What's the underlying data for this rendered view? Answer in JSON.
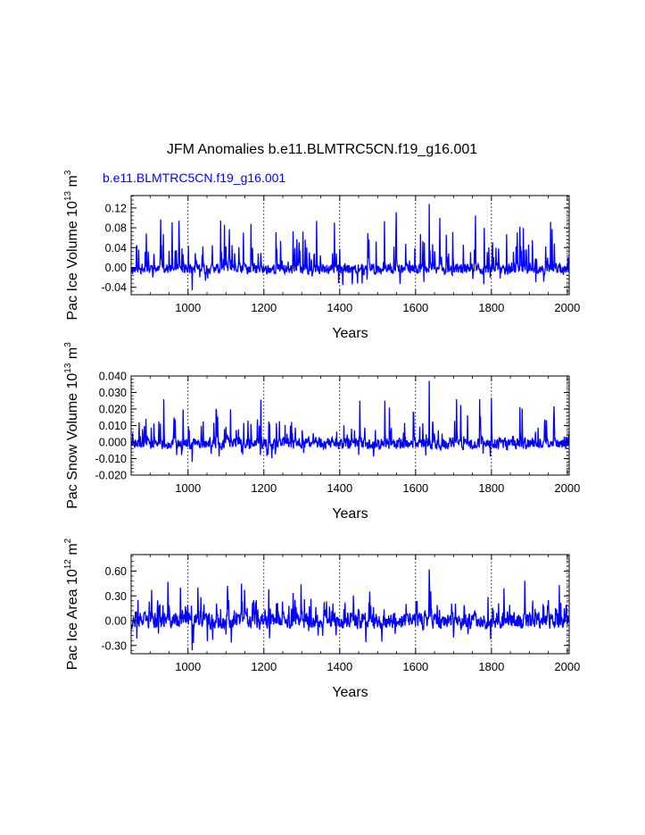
{
  "title": "JFM Anomalies b.e11.BLMTRC5CN.f19_g16.001",
  "case_label": "b.e11.BLMTRC5CN.f19_g16.001",
  "colors": {
    "series": "#0000ff",
    "case_label": "#0000ff",
    "axes": "#000000",
    "grid": "#000000"
  },
  "chart_data": [
    {
      "type": "line",
      "name": "ice-volume",
      "ylabel": {
        "main": "Pac Ice Volume 10",
        "exp": "13",
        "unit": " m",
        "unit_exp": "3"
      },
      "xlabel": "Years",
      "xlim": [
        850,
        2005
      ],
      "ylim": [
        -0.055,
        0.145
      ],
      "xticks": [
        1000,
        1200,
        1400,
        1600,
        1800,
        2000
      ],
      "xtick_labels": [
        "1000",
        "1200",
        "1400",
        "1600",
        "1800",
        "2000"
      ],
      "yticks": [
        -0.04,
        0.0,
        0.04,
        0.08,
        0.12
      ],
      "ytick_labels": [
        "-0.04",
        "0.00",
        "0.04",
        "0.08",
        "0.12"
      ],
      "grid": "vertical dashed at major x ticks",
      "series": {
        "name": "Pac Ice Volume",
        "x_start": 850,
        "x_end": 2005,
        "baseline": -0.003,
        "noise": 0.011,
        "spike_max": 0.128,
        "spike_min": -0.046,
        "seed": 11
      },
      "extremes": {
        "max": 0.128,
        "min": -0.046
      }
    },
    {
      "type": "line",
      "name": "snow-volume",
      "ylabel": {
        "main": "Pac Snow Volume 10",
        "exp": "13",
        "unit": " m",
        "unit_exp": "3"
      },
      "xlabel": "Years",
      "xlim": [
        850,
        2005
      ],
      "ylim": [
        -0.02,
        0.04
      ],
      "xticks": [
        1000,
        1200,
        1400,
        1600,
        1800,
        2000
      ],
      "xtick_labels": [
        "1000",
        "1200",
        "1400",
        "1600",
        "1800",
        "2000"
      ],
      "yticks": [
        -0.02,
        -0.01,
        0.0,
        0.01,
        0.02,
        0.03,
        0.04
      ],
      "ytick_labels": [
        "-0.020",
        "-0.010",
        "0.000",
        "0.010",
        "0.020",
        "0.030",
        "0.040"
      ],
      "grid": "vertical dashed at major x ticks",
      "series": {
        "name": "Pac Snow Volume",
        "x_start": 850,
        "x_end": 2005,
        "baseline": -0.0008,
        "noise": 0.0035,
        "spike_max": 0.037,
        "spike_min": -0.012,
        "seed": 23
      },
      "extremes": {
        "max": 0.037,
        "min": -0.012
      }
    },
    {
      "type": "line",
      "name": "ice-area",
      "ylabel": {
        "main": "Pac Ice Area 10",
        "exp": "12",
        "unit": " m",
        "unit_exp": "2"
      },
      "xlabel": "Years",
      "xlim": [
        850,
        2005
      ],
      "ylim": [
        -0.4,
        0.8
      ],
      "xticks": [
        1000,
        1200,
        1400,
        1600,
        1800,
        2000
      ],
      "xtick_labels": [
        "1000",
        "1200",
        "1400",
        "1600",
        "1800",
        "2000"
      ],
      "yticks": [
        -0.3,
        0.0,
        0.3,
        0.6
      ],
      "ytick_labels": [
        "-0.30",
        "0.00",
        "0.30",
        "0.60"
      ],
      "grid": "vertical dashed at major x ticks",
      "series": {
        "name": "Pac Ice Area",
        "x_start": 850,
        "x_end": 2005,
        "baseline": 0.0,
        "noise": 0.1,
        "spike_max": 0.62,
        "spike_min": -0.36,
        "seed": 37
      },
      "extremes": {
        "max": 0.62,
        "min": -0.36
      }
    }
  ]
}
